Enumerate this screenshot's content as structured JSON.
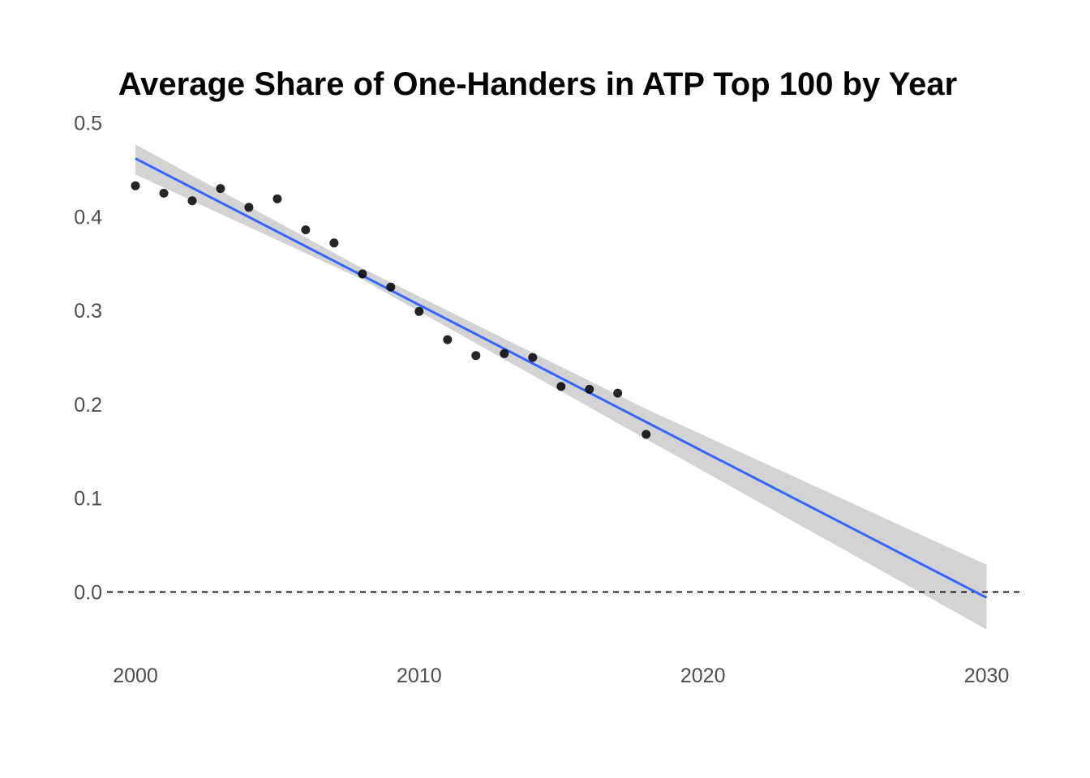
{
  "chart_data": {
    "type": "scatter",
    "title": "Average Share of One-Handers in ATP Top 100 by Year",
    "xlabel": "",
    "ylabel": "",
    "xlim": [
      1999.0,
      2031.3
    ],
    "ylim": [
      -0.06,
      0.51
    ],
    "x_ticks": [
      "2000",
      "2010",
      "2020",
      "2030"
    ],
    "y_ticks": [
      "0.0",
      "0.1",
      "0.2",
      "0.3",
      "0.4",
      "0.5"
    ],
    "grid": false,
    "legend": "none",
    "series": [
      {
        "type": "scatter",
        "x": [
          2000,
          2001,
          2002,
          2003,
          2004,
          2005,
          2006,
          2007,
          2008,
          2009,
          2010,
          2011,
          2012,
          2013,
          2014,
          2015,
          2016,
          2017,
          2018
        ],
        "y": [
          0.433,
          0.425,
          0.417,
          0.43,
          0.41,
          0.419,
          0.386,
          0.372,
          0.339,
          0.325,
          0.299,
          0.269,
          0.252,
          0.254,
          0.25,
          0.219,
          0.216,
          0.212,
          0.168
        ]
      }
    ],
    "trend_line": {
      "type": "linear-fit",
      "x": [
        2000,
        2030
      ],
      "y": [
        0.462,
        -0.006
      ],
      "confidence_band": {
        "x": [
          2000,
          2008,
          2018,
          2030
        ],
        "upper": [
          0.477,
          0.345,
          0.195,
          0.029
        ],
        "lower": [
          0.445,
          0.333,
          0.163,
          -0.04
        ]
      }
    },
    "reference_line": {
      "y": 0.0,
      "style": "dashed"
    },
    "colors": {
      "points": "#000000",
      "fit_line": "#3366ff",
      "band": "#d3d3d3",
      "reference": "#000000",
      "tick_text": "#4d4d4d",
      "title": "#000000"
    }
  }
}
